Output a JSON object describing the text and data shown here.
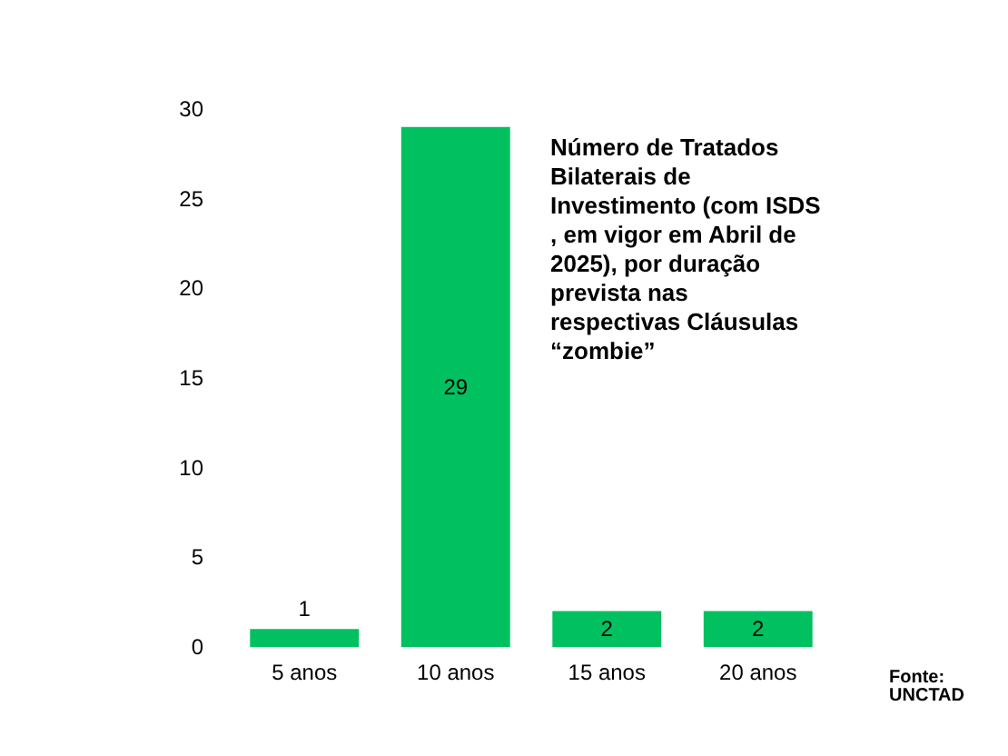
{
  "chart_data": {
    "type": "bar",
    "title": "Número de Tratados Bilaterais de Investimento (com ISDS, em vigor em Abril de 2025), por duração prevista nas respectivas Cláusulas “zombie”",
    "categories": [
      "5 anos",
      "10 anos",
      "15 anos",
      "20 anos"
    ],
    "values": [
      1,
      29,
      2,
      2
    ],
    "color": "#00c060",
    "ylim": [
      0,
      30
    ],
    "yticks": [
      0,
      5,
      10,
      15,
      20,
      25,
      30
    ],
    "grid": false,
    "data_labels": true,
    "annotations": [
      "Fonte: UNCTAD"
    ]
  }
}
